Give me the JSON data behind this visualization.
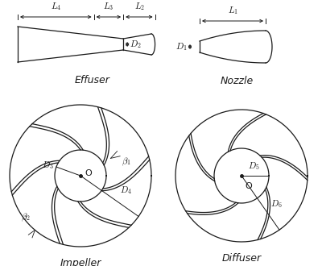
{
  "bg_color": "#ffffff",
  "line_color": "#1a1a1a",
  "effuser_label": "Effuser",
  "nozzle_label": "Nozzle",
  "impeller_label": "Impeller",
  "diffuser_label": "Diffuser",
  "O": "O"
}
